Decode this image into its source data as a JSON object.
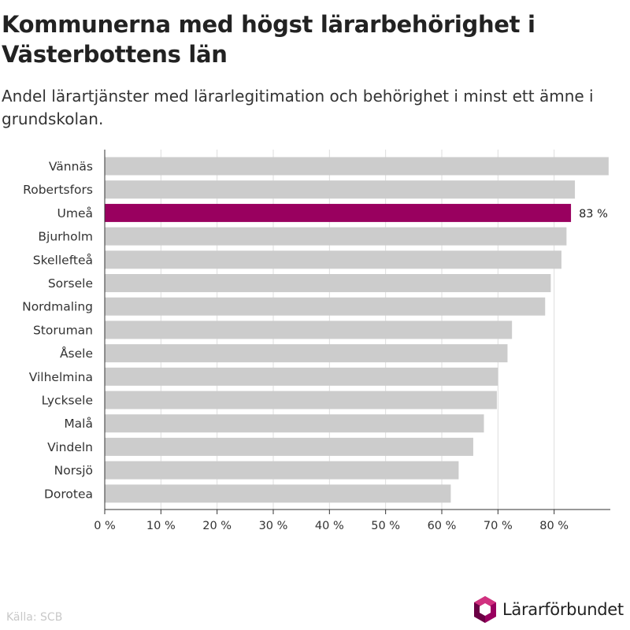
{
  "title": "Kommunerna med högst lärarbehörighet i Västerbottens län",
  "subtitle": "Andel lärartjänster med lärarlegitimation och behörighet i minst ett ämne i grundskolan.",
  "source": "Källa: SCB",
  "logo": {
    "text": "Lärarförbundet",
    "icon": "hexagon-logo-icon"
  },
  "colors": {
    "bar": "#cccccc",
    "highlight": "#99005f",
    "grid": "#dddddd",
    "axis": "#333333"
  },
  "chart_data": {
    "type": "bar",
    "orientation": "horizontal",
    "categories": [
      "Vännäs",
      "Robertsfors",
      "Umeå",
      "Bjurholm",
      "Skellefteå",
      "Sorsele",
      "Nordmaling",
      "Storuman",
      "Åsele",
      "Vilhelmina",
      "Lycksele",
      "Malå",
      "Vindeln",
      "Norsjö",
      "Dorotea"
    ],
    "values": [
      89.7,
      83.7,
      83,
      82.2,
      81.3,
      79.4,
      78.4,
      72.5,
      71.7,
      70,
      69.8,
      67.5,
      65.6,
      63,
      61.6
    ],
    "highlight": {
      "category": "Umeå",
      "label": "83 %"
    },
    "xlim": [
      0,
      90
    ],
    "xticks": [
      0,
      10,
      20,
      30,
      40,
      50,
      60,
      70,
      80
    ],
    "xtick_labels": [
      "0 %",
      "10 %",
      "20 %",
      "30 %",
      "40 %",
      "50 %",
      "60 %",
      "70 %",
      "80 %"
    ],
    "grid": true
  }
}
